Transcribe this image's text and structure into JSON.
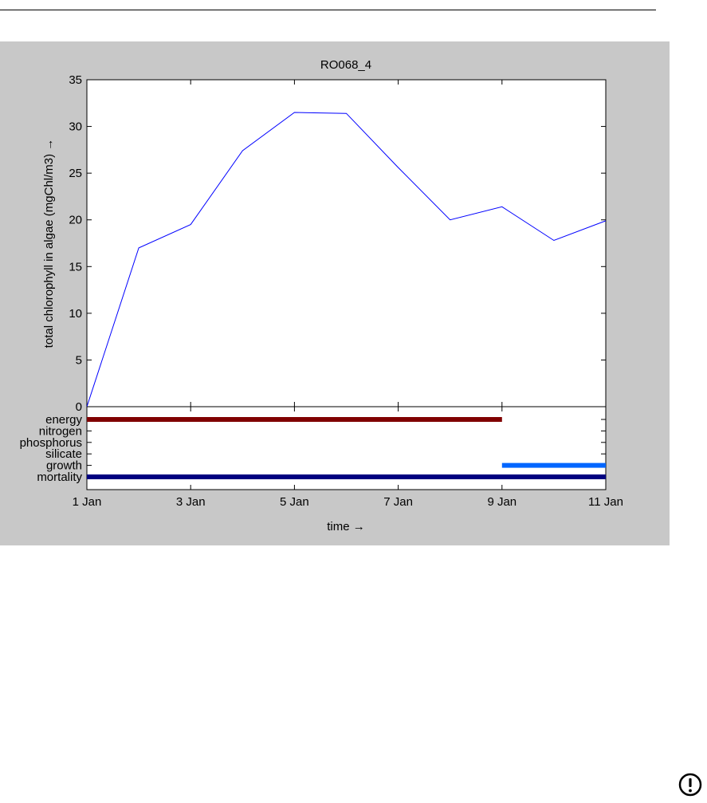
{
  "chart_data": [
    {
      "type": "line",
      "title": "RO068_4",
      "ylabel": "total chlorophyll in algae (mgChl/m3) →",
      "ylim": [
        0,
        35
      ],
      "yticks": [
        "0",
        "5",
        "10",
        "15",
        "20",
        "25",
        "30",
        "35"
      ],
      "x": [
        1,
        2,
        3,
        4,
        5,
        6,
        7,
        8,
        9,
        10,
        11
      ],
      "series": [
        {
          "values": [
            0,
            17.0,
            19.5,
            27.4,
            31.5,
            31.4,
            25.6,
            20.0,
            21.4,
            17.8,
            19.9
          ]
        }
      ],
      "colors": {
        "line": "#0000ff",
        "axes_bg": "#ffffff",
        "figure_bg": "#c8c8c8"
      }
    },
    {
      "type": "bar",
      "xlabel": "time →",
      "xlim": [
        "1 Jan",
        "11 Jan"
      ],
      "xticks": [
        "1 Jan",
        "3 Jan",
        "5 Jan",
        "7 Jan",
        "9 Jan",
        "11 Jan"
      ],
      "categories": [
        "energy",
        "nitrogen",
        "phosphorus",
        "silicate",
        "growth",
        "mortality"
      ],
      "intervals": [
        {
          "category": "energy",
          "start": "1 Jan",
          "end": "9 Jan",
          "color": "#800000"
        },
        {
          "category": "growth",
          "start": "9 Jan",
          "end": "11 Jan",
          "color": "#0066ff"
        },
        {
          "category": "mortality",
          "start": "1 Jan",
          "end": "11 Jan",
          "color": "#000080"
        }
      ]
    }
  ],
  "icons": {
    "corner": "alert-circle-icon"
  }
}
